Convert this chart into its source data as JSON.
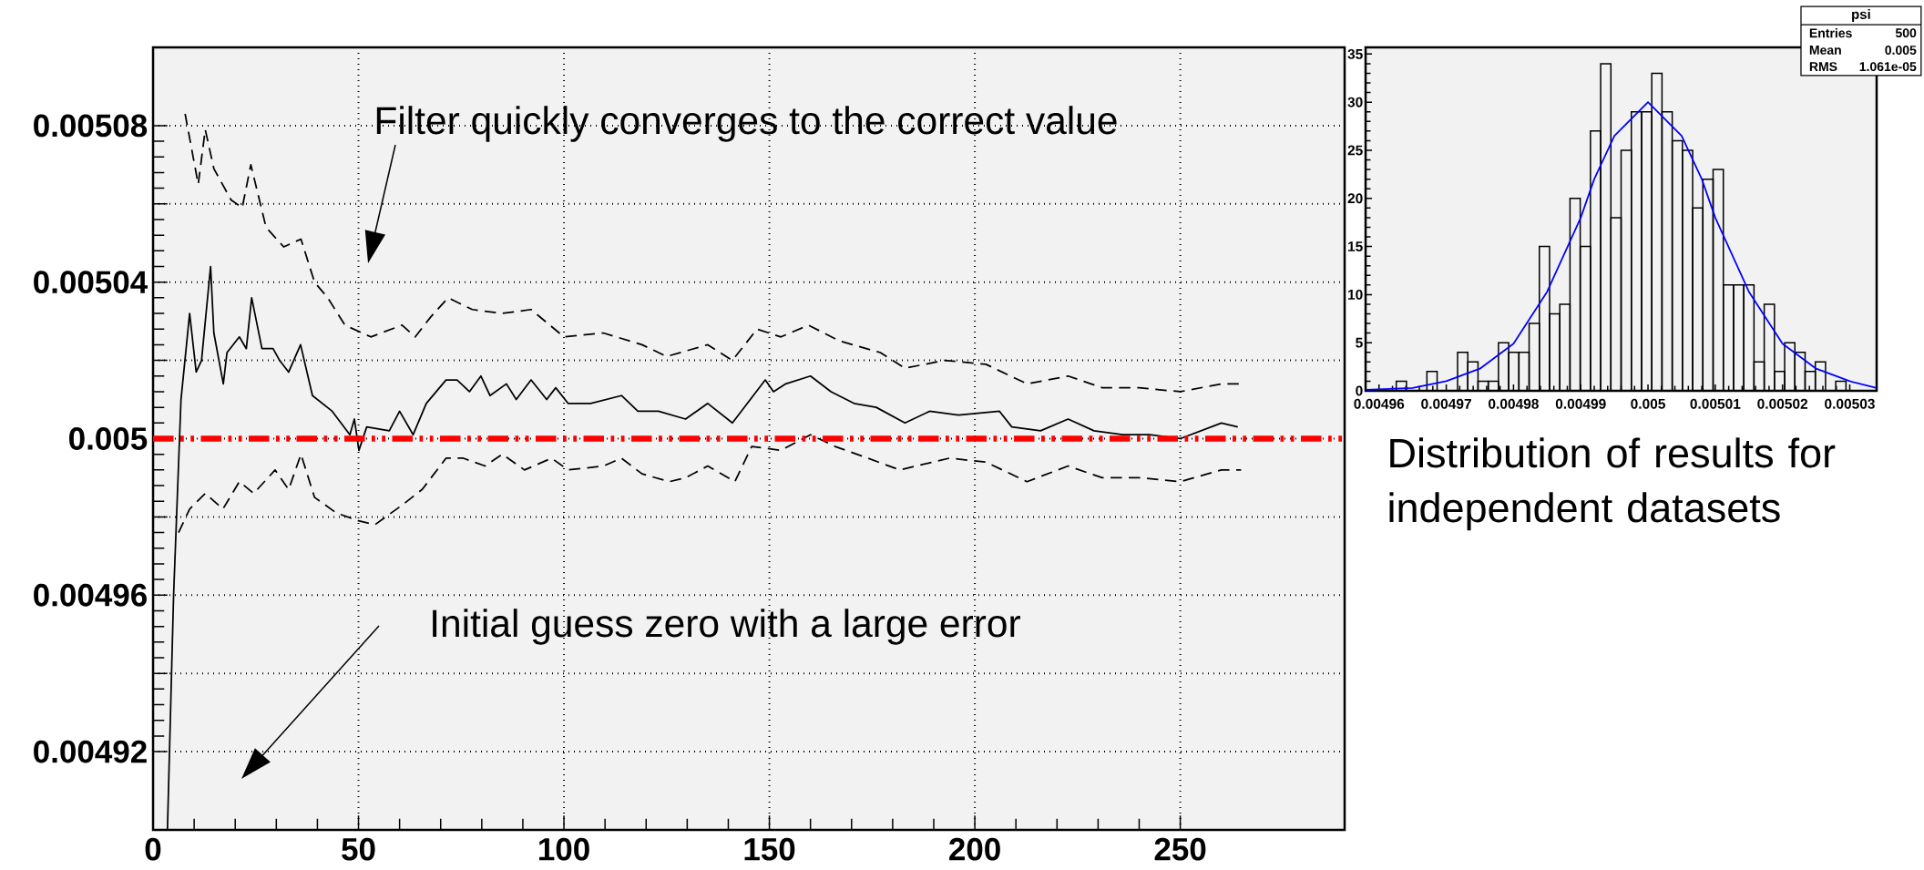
{
  "chart_data": [
    {
      "type": "line",
      "xlim": [
        0,
        290
      ],
      "ylim": [
        0.0049,
        0.0051
      ],
      "grid": true,
      "xticks": [
        0,
        50,
        100,
        150,
        200,
        250
      ],
      "yticks": [
        0.00492,
        {
          "value": 0.00494,
          "label": null
        },
        0.00496,
        {
          "value": 0.00498,
          "label": null
        },
        0.005,
        {
          "value": 0.00502,
          "label": null
        },
        0.00504,
        {
          "value": 0.00506,
          "label": null
        },
        0.00508
      ],
      "series": [
        {
          "color": "#000000",
          "x": [
            3.5,
            5,
            6.8,
            8.9,
            10.5,
            11.8,
            14,
            14.8,
            17.1,
            18,
            21,
            22.7,
            24,
            26.5,
            29.2,
            30.8,
            33,
            35.9,
            38.8,
            43.6,
            47.9,
            49,
            50.1,
            52,
            57.5,
            60,
            63.3,
            66.5,
            71.3,
            74,
            77,
            79.8,
            82,
            86,
            88.4,
            92,
            95.8,
            98,
            101,
            106.5,
            114,
            118,
            123,
            129.6,
            135,
            141,
            149,
            151,
            154,
            160,
            165,
            170.6,
            176,
            183,
            189,
            196,
            206,
            209,
            216,
            222.7,
            229,
            236,
            242.5,
            250,
            260,
            264
          ],
          "values": [
            0.0049,
            0.00496,
            0.00501,
            0.005032,
            0.005017,
            0.00502,
            0.005044,
            0.005027,
            0.005014,
            0.005022,
            0.005026,
            0.005023,
            0.005036,
            0.005023,
            0.005023,
            0.00502,
            0.005017,
            0.005024,
            0.005011,
            0.005007,
            0.005001,
            0.005005,
            0.004997,
            0.005003,
            0.005002,
            0.005007,
            0.005001,
            0.005009,
            0.005015,
            0.005015,
            0.005012,
            0.005016,
            0.005011,
            0.005014,
            0.00501,
            0.005015,
            0.00501,
            0.005013,
            0.005009,
            0.005009,
            0.005011,
            0.005007,
            0.005007,
            0.005005,
            0.005009,
            0.005004,
            0.005015,
            0.005012,
            0.005014,
            0.005016,
            0.005012,
            0.005009,
            0.005008,
            0.005004,
            0.005007,
            0.005006,
            0.005007,
            0.005003,
            0.005002,
            0.005005,
            0.005002,
            0.005001,
            0.005001,
            0.005,
            0.005004,
            0.005003
          ]
        },
        {
          "color": "#000000",
          "line_style": "dashed",
          "x": [
            7.8,
            11,
            12.7,
            14.8,
            19,
            21.7,
            23.8,
            27.5,
            31.8,
            36,
            39.3,
            42.5,
            46.7,
            53,
            60.6,
            63.8,
            67.5,
            71.8,
            77.7,
            85,
            92,
            100,
            109.6,
            119,
            125,
            135,
            141,
            147,
            152.8,
            159.5,
            167,
            177,
            183,
            192.6,
            202.7,
            212.7,
            222.7,
            231,
            240,
            250,
            260,
            264.8
          ],
          "values": [
            0.005083,
            0.005065,
            0.005079,
            0.005069,
            0.005061,
            0.005059,
            0.00507,
            0.005054,
            0.005049,
            0.005051,
            0.00504,
            0.005036,
            0.005029,
            0.005026,
            0.005029,
            0.005026,
            0.005031,
            0.005036,
            0.005033,
            0.005032,
            0.005033,
            0.005026,
            0.005027,
            0.005024,
            0.005021,
            0.005024,
            0.00502,
            0.005028,
            0.005026,
            0.005029,
            0.005025,
            0.005022,
            0.005018,
            0.00502,
            0.005019,
            0.005014,
            0.005016,
            0.005013,
            0.005013,
            0.005012,
            0.005014,
            0.005014
          ]
        },
        {
          "color": "#000000",
          "line_style": "dashed",
          "x": [
            6.2,
            8.9,
            12.7,
            17,
            21,
            24.5,
            29.7,
            33,
            36,
            39.3,
            44.6,
            50,
            54,
            60.6,
            65.5,
            71.3,
            75.5,
            80.8,
            85,
            90.4,
            97,
            101,
            109.6,
            114,
            119,
            125.6,
            129.6,
            135,
            141.6,
            145.7,
            152.8,
            160,
            166,
            174,
            181.7,
            193.8,
            202.7,
            212.7,
            222.7,
            231,
            240,
            250,
            260,
            264.8
          ],
          "values": [
            0.004976,
            0.004982,
            0.004986,
            0.004982,
            0.004989,
            0.004986,
            0.004992,
            0.004987,
            0.004996,
            0.004985,
            0.004981,
            0.004979,
            0.004978,
            0.004983,
            0.004987,
            0.004995,
            0.004995,
            0.004993,
            0.004996,
            0.004992,
            0.004995,
            0.004992,
            0.004993,
            0.004995,
            0.004991,
            0.004989,
            0.00499,
            0.004993,
            0.004989,
            0.004998,
            0.004997,
            0.005001,
            0.004998,
            0.004995,
            0.004992,
            0.004995,
            0.004994,
            0.004989,
            0.004993,
            0.00499,
            0.00499,
            0.004989,
            0.004992,
            0.004992
          ]
        }
      ],
      "ref_lines": [
        {
          "axis": "y",
          "value": 0.005,
          "color": "#ff0000",
          "line_style": "dashed"
        }
      ],
      "annotations": [
        "Filter quickly converges to the correct value",
        "Initial guess zero with a large error"
      ]
    },
    {
      "type": "histogram",
      "xlim": [
        0.004958,
        0.005034
      ],
      "ylim": [
        0,
        35.7
      ],
      "xticks": [
        0.00496,
        0.00497,
        0.00498,
        0.00499,
        0.005,
        0.00501,
        0.00502,
        0.00503
      ],
      "yticks": [
        0,
        5,
        10,
        15,
        20,
        25,
        30,
        35
      ],
      "color": "#000000",
      "bins": [
        0.004958,
        0.00495952,
        0.00496104,
        0.00496256,
        0.00496408,
        0.0049656,
        0.00496712,
        0.00496864,
        0.00497016,
        0.00497168,
        0.0049732,
        0.00497472,
        0.00497624,
        0.00497776,
        0.00497928,
        0.0049808,
        0.00498232,
        0.00498384,
        0.00498536,
        0.00498688,
        0.0049884,
        0.00498992,
        0.00499144,
        0.00499296,
        0.00499448,
        0.004996,
        0.00499752,
        0.00499904,
        0.00500056,
        0.00500208,
        0.0050036,
        0.00500512,
        0.00500664,
        0.00500816,
        0.00500968,
        0.0050112,
        0.00501272,
        0.00501424,
        0.00501576,
        0.00501728,
        0.0050188,
        0.00502032,
        0.00502184,
        0.00502336,
        0.00502488,
        0.0050264,
        0.00502792,
        0.00502944,
        0.00503096,
        0.00503248,
        0.005034
      ],
      "values": [
        0,
        0,
        0,
        1,
        0,
        0,
        2,
        0,
        0,
        4,
        3,
        1,
        1,
        5,
        4,
        4,
        7,
        15,
        8,
        9,
        20,
        15,
        27,
        34,
        18,
        25,
        29,
        29,
        33,
        29,
        26,
        25,
        19,
        22,
        23,
        11,
        11,
        11,
        3,
        9,
        2,
        5,
        4,
        2,
        3,
        0,
        1,
        0,
        0,
        0
      ],
      "series": [
        {
          "type": "line",
          "color": "#0000ff",
          "x": [
            0.004958,
            0.004965,
            0.00497,
            0.004975,
            0.00498,
            0.004985,
            0.00499,
            0.004992,
            0.004995,
            0.005,
            0.005005,
            0.005008,
            0.00501,
            0.005015,
            0.00502,
            0.005025,
            0.00503,
            0.005034
          ],
          "values": [
            0.1,
            0.3,
            1.0,
            2.3,
            4.9,
            10.3,
            18,
            22,
            26.5,
            30,
            26.5,
            22,
            18,
            10.3,
            4.9,
            2.3,
            1.0,
            0.3
          ]
        }
      ],
      "annotations": [
        "Distribution of results for independent datasets",
        "psi",
        "Entries",
        "500",
        "Mean",
        "0.005",
        "RMS",
        "1.061e-05"
      ]
    }
  ]
}
